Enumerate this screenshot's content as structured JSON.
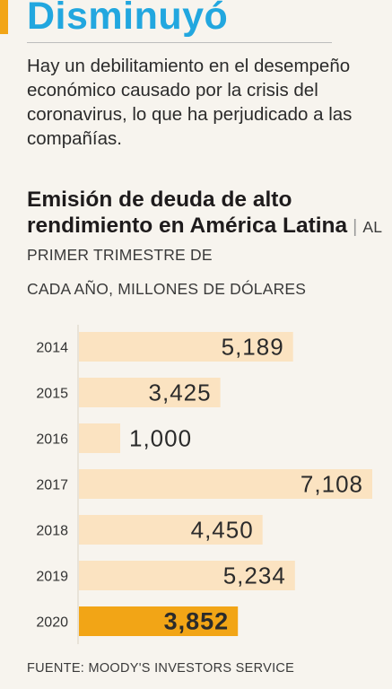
{
  "headline": "Disminuyó",
  "intro": "Hay un debilitamiento en el desempeño económico causado por la crisis del coronavirus, lo que ha perjudicado a las compañías.",
  "chart_data": {
    "type": "bar",
    "orientation": "horizontal",
    "title": "Emisión de deuda de alto rendimiento en América Latina",
    "subtitle_line1": "AL PRIMER TRIMESTRE DE",
    "subtitle_line2": "CADA AÑO, MILLONES DE DÓLARES",
    "categories": [
      "2014",
      "2015",
      "2016",
      "2017",
      "2018",
      "2019",
      "2020"
    ],
    "values": [
      5189,
      3425,
      1000,
      7108,
      4450,
      5234,
      3852
    ],
    "value_labels": [
      "5,189",
      "3,425",
      "1,000",
      "7,108",
      "4,450",
      "5,234",
      "3,852"
    ],
    "highlight_category": "2020",
    "colors": {
      "bar": "#fbe3c1",
      "highlight": "#f2a516",
      "headline": "#22a7df",
      "accent": "#f2a516"
    },
    "xlim": [
      0,
      7108
    ],
    "grid": false
  },
  "source": "FUENTE: MOODY'S INVESTORS SERVICE"
}
